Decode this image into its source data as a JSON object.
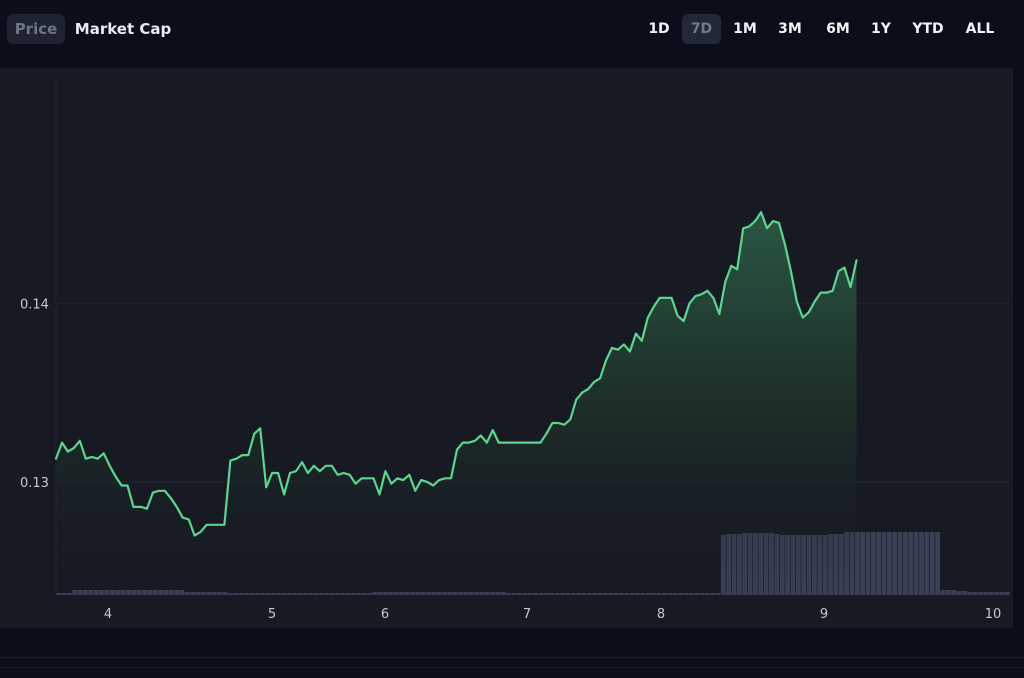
{
  "tabs": [
    {
      "label": "Price",
      "active": true
    },
    {
      "label": "Market Cap",
      "active": false
    }
  ],
  "ranges": [
    {
      "label": "1D",
      "active": false
    },
    {
      "label": "7D",
      "active": true
    },
    {
      "label": "1M",
      "active": false
    },
    {
      "label": "3M",
      "active": false
    },
    {
      "label": "6M",
      "active": false
    },
    {
      "label": "1Y",
      "active": false
    },
    {
      "label": "YTD",
      "active": false
    },
    {
      "label": "ALL",
      "active": false
    }
  ],
  "colors": {
    "line": "#5fd48f",
    "volume": "#3a4055",
    "panel": "#171a23",
    "page": "#0b0e1a"
  },
  "chart_data": {
    "type": "line",
    "title": "",
    "xlabel": "",
    "ylabel": "",
    "x_ticks": [
      "4",
      "5",
      "6",
      "7",
      "8",
      "9",
      "10"
    ],
    "y_ticks": [
      "0.13",
      "0.14"
    ],
    "xlim": [
      3.7,
      10.1
    ],
    "ylim": [
      0.1235,
      0.1525
    ],
    "grid": true,
    "legend": "none",
    "series": [
      {
        "values": [
          [
            3.7,
            0.1313
          ],
          [
            3.74,
            0.1322
          ],
          [
            3.78,
            0.1317
          ],
          [
            3.82,
            0.1319
          ],
          [
            3.86,
            0.1323
          ],
          [
            3.9,
            0.1313
          ],
          [
            3.94,
            0.1314
          ],
          [
            3.98,
            0.1313
          ],
          [
            4.02,
            0.1316
          ],
          [
            4.06,
            0.1309
          ],
          [
            4.1,
            0.1303
          ],
          [
            4.14,
            0.1298
          ],
          [
            4.18,
            0.1298
          ],
          [
            4.22,
            0.1286
          ],
          [
            4.27,
            0.1286
          ],
          [
            4.31,
            0.1285
          ],
          [
            4.35,
            0.1294
          ],
          [
            4.39,
            0.1295
          ],
          [
            4.43,
            0.1295
          ],
          [
            4.47,
            0.1291
          ],
          [
            4.51,
            0.1286
          ],
          [
            4.55,
            0.128
          ],
          [
            4.59,
            0.1279
          ],
          [
            4.63,
            0.127
          ],
          [
            4.67,
            0.1272
          ],
          [
            4.71,
            0.1276
          ],
          [
            4.75,
            0.1276
          ],
          [
            4.79,
            0.1276
          ],
          [
            4.83,
            0.1276
          ],
          [
            4.87,
            0.1312
          ],
          [
            4.91,
            0.1313
          ],
          [
            4.95,
            0.1315
          ],
          [
            4.99,
            0.1315
          ],
          [
            5.03,
            0.1327
          ],
          [
            5.07,
            0.133
          ],
          [
            5.11,
            0.1297
          ],
          [
            5.15,
            0.1305
          ],
          [
            5.19,
            0.1305
          ],
          [
            5.23,
            0.1293
          ],
          [
            5.27,
            0.1305
          ],
          [
            5.31,
            0.1306
          ],
          [
            5.35,
            0.1311
          ],
          [
            5.39,
            0.1305
          ],
          [
            5.43,
            0.1309
          ],
          [
            5.47,
            0.1306
          ],
          [
            5.51,
            0.1309
          ],
          [
            5.55,
            0.1309
          ],
          [
            5.59,
            0.1304
          ],
          [
            5.63,
            0.1305
          ],
          [
            5.67,
            0.1304
          ],
          [
            5.71,
            0.1299
          ],
          [
            5.75,
            0.1302
          ],
          [
            5.79,
            0.1302
          ],
          [
            5.83,
            0.1302
          ],
          [
            5.87,
            0.1293
          ],
          [
            5.91,
            0.1306
          ],
          [
            5.95,
            0.1299
          ],
          [
            5.99,
            0.1302
          ],
          [
            6.03,
            0.1301
          ],
          [
            6.07,
            0.1304
          ],
          [
            6.11,
            0.1295
          ],
          [
            6.15,
            0.1301
          ],
          [
            6.19,
            0.13
          ],
          [
            6.23,
            0.1298
          ],
          [
            6.27,
            0.1301
          ],
          [
            6.31,
            0.1302
          ],
          [
            6.35,
            0.1302
          ],
          [
            6.39,
            0.1318
          ],
          [
            6.43,
            0.1322
          ],
          [
            6.47,
            0.1322
          ],
          [
            6.51,
            0.1323
          ],
          [
            6.55,
            0.1326
          ],
          [
            6.59,
            0.1322
          ],
          [
            6.63,
            0.1329
          ],
          [
            6.67,
            0.1322
          ],
          [
            6.71,
            0.1322
          ],
          [
            6.75,
            0.1322
          ],
          [
            6.79,
            0.1322
          ],
          [
            6.83,
            0.1322
          ],
          [
            6.87,
            0.1322
          ],
          [
            6.91,
            0.1322
          ],
          [
            6.95,
            0.1322
          ],
          [
            6.99,
            0.1327
          ],
          [
            7.03,
            0.1333
          ],
          [
            7.07,
            0.1333
          ],
          [
            7.11,
            0.1332
          ],
          [
            7.15,
            0.1335
          ],
          [
            7.19,
            0.1346
          ],
          [
            7.23,
            0.135
          ],
          [
            7.27,
            0.1352
          ],
          [
            7.31,
            0.1356
          ],
          [
            7.35,
            0.1358
          ],
          [
            7.39,
            0.1368
          ],
          [
            7.43,
            0.1375
          ],
          [
            7.47,
            0.1374
          ],
          [
            7.51,
            0.1377
          ],
          [
            7.55,
            0.1373
          ],
          [
            7.59,
            0.1383
          ],
          [
            7.63,
            0.1379
          ],
          [
            7.67,
            0.1392
          ],
          [
            7.71,
            0.1398
          ],
          [
            7.75,
            0.1403
          ],
          [
            7.79,
            0.1403
          ],
          [
            7.83,
            0.1403
          ],
          [
            7.87,
            0.1393
          ],
          [
            7.91,
            0.139
          ],
          [
            7.95,
            0.14
          ],
          [
            7.99,
            0.1404
          ],
          [
            8.03,
            0.1405
          ],
          [
            8.07,
            0.1407
          ],
          [
            8.11,
            0.1403
          ],
          [
            8.15,
            0.1394
          ],
          [
            8.19,
            0.1412
          ],
          [
            8.23,
            0.1421
          ],
          [
            8.27,
            0.1419
          ],
          [
            8.31,
            0.1442
          ],
          [
            8.35,
            0.1443
          ],
          [
            8.39,
            0.1446
          ],
          [
            8.43,
            0.1451
          ],
          [
            8.47,
            0.1442
          ],
          [
            8.51,
            0.1446
          ],
          [
            8.55,
            0.1445
          ],
          [
            8.59,
            0.1433
          ],
          [
            8.63,
            0.1418
          ],
          [
            8.67,
            0.1401
          ],
          [
            8.71,
            0.1392
          ],
          [
            8.75,
            0.1395
          ],
          [
            8.79,
            0.1401
          ],
          [
            8.83,
            0.1406
          ],
          [
            8.87,
            0.1406
          ],
          [
            8.91,
            0.1407
          ],
          [
            8.95,
            0.1418
          ],
          [
            8.99,
            0.142
          ],
          [
            9.03,
            0.1409
          ],
          [
            9.07,
            0.1424
          ]
        ]
      }
    ],
    "volume": [
      0.02,
      0.02,
      0.02,
      0.05,
      0.05,
      0.05,
      0.05,
      0.05,
      0.05,
      0.05,
      0.05,
      0.05,
      0.05,
      0.05,
      0.05,
      0.05,
      0.05,
      0.05,
      0.05,
      0.05,
      0.05,
      0.05,
      0.05,
      0.05,
      0.03,
      0.03,
      0.03,
      0.03,
      0.03,
      0.03,
      0.03,
      0.03,
      0.02,
      0.02,
      0.02,
      0.02,
      0.02,
      0.02,
      0.02,
      0.02,
      0.02,
      0.02,
      0.02,
      0.02,
      0.02,
      0.02,
      0.02,
      0.02,
      0.02,
      0.02,
      0.02,
      0.02,
      0.02,
      0.02,
      0.02,
      0.02,
      0.02,
      0.02,
      0.02,
      0.03,
      0.03,
      0.03,
      0.03,
      0.03,
      0.03,
      0.03,
      0.03,
      0.03,
      0.03,
      0.03,
      0.03,
      0.03,
      0.03,
      0.03,
      0.03,
      0.03,
      0.03,
      0.03,
      0.03,
      0.03,
      0.03,
      0.03,
      0.03,
      0.03,
      0.02,
      0.02,
      0.02,
      0.02,
      0.02,
      0.02,
      0.02,
      0.02,
      0.02,
      0.02,
      0.02,
      0.02,
      0.02,
      0.02,
      0.02,
      0.02,
      0.02,
      0.02,
      0.02,
      0.02,
      0.02,
      0.02,
      0.02,
      0.02,
      0.02,
      0.02,
      0.02,
      0.02,
      0.02,
      0.02,
      0.02,
      0.02,
      0.02,
      0.02,
      0.02,
      0.02,
      0.02,
      0.02,
      0.02,
      0.02,
      0.6,
      0.61,
      0.61,
      0.61,
      0.62,
      0.62,
      0.62,
      0.62,
      0.62,
      0.62,
      0.61,
      0.6,
      0.6,
      0.6,
      0.6,
      0.6,
      0.6,
      0.6,
      0.6,
      0.6,
      0.61,
      0.61,
      0.61,
      0.63,
      0.63,
      0.63,
      0.63,
      0.63,
      0.63,
      0.63,
      0.63,
      0.63,
      0.63,
      0.63,
      0.63,
      0.63,
      0.63,
      0.63,
      0.63,
      0.63,
      0.63,
      0.05,
      0.05,
      0.05,
      0.04,
      0.04,
      0.03,
      0.03,
      0.03,
      0.03,
      0.03,
      0.03,
      0.03,
      0.03
    ]
  }
}
